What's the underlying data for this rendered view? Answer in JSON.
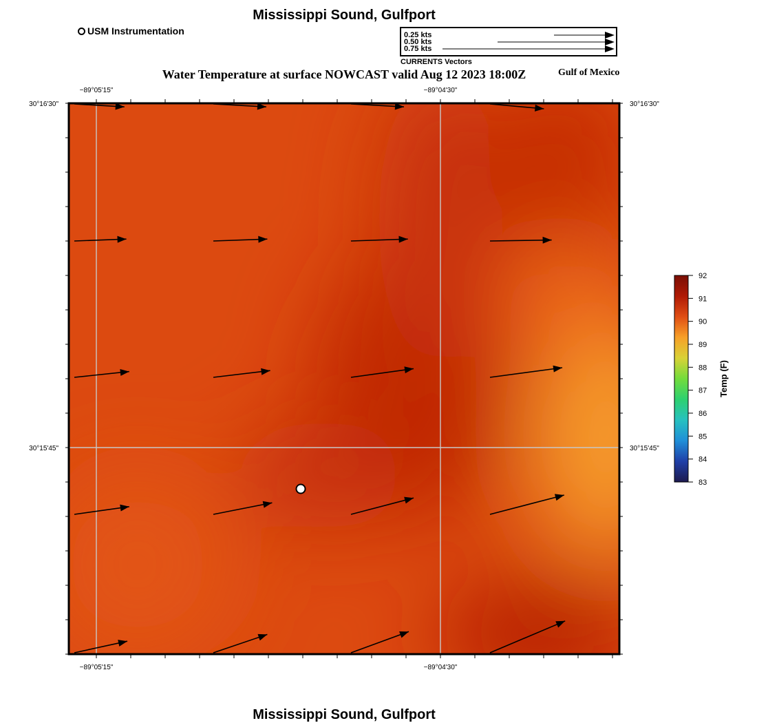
{
  "header": {
    "title": "Mississippi Sound, Gulfport",
    "subtitle": "Water Temperature at surface NOWCAST valid Aug 12 2023 18:00Z",
    "region": "Gulf of Mexico"
  },
  "footer": {
    "title": "Mississippi Sound, Gulfport"
  },
  "station_legend": {
    "label": "USM Instrumentation"
  },
  "vector_legend": {
    "caption": "CURRENTS Vectors",
    "items": [
      {
        "label": "0.25 kts",
        "speed": 0.25
      },
      {
        "label": "0.50 kts",
        "speed": 0.5
      },
      {
        "label": "0.75 kts",
        "speed": 0.75
      }
    ]
  },
  "map": {
    "top_labels": [
      "−89°05'15\"",
      "−89°04'30\""
    ],
    "bottom_labels": [
      "−89°05'15\"",
      "−89°04'30\""
    ],
    "left_labels": [
      "30°16'30\"",
      "30°15'45\""
    ],
    "right_labels": [
      "30°16'30\"",
      "30°15'45\""
    ],
    "station": {
      "name": "USM Instrumentation"
    },
    "currents": [
      [
        {
          "u": 0.52,
          "v": -0.03
        },
        {
          "u": 0.55,
          "v": -0.03
        },
        {
          "u": 0.55,
          "v": -0.03
        },
        {
          "u": 0.56,
          "v": -0.05
        }
      ],
      [
        {
          "u": 0.54,
          "v": 0.02
        },
        {
          "u": 0.56,
          "v": 0.02
        },
        {
          "u": 0.59,
          "v": 0.02
        },
        {
          "u": 0.64,
          "v": 0.01
        }
      ],
      [
        {
          "u": 0.57,
          "v": 0.06
        },
        {
          "u": 0.59,
          "v": 0.07
        },
        {
          "u": 0.65,
          "v": 0.09
        },
        {
          "u": 0.75,
          "v": 0.1
        }
      ],
      [
        {
          "u": 0.57,
          "v": 0.08
        },
        {
          "u": 0.61,
          "v": 0.12
        },
        {
          "u": 0.65,
          "v": 0.17
        },
        {
          "u": 0.77,
          "v": 0.2
        }
      ],
      [
        {
          "u": 0.55,
          "v": 0.12
        },
        {
          "u": 0.56,
          "v": 0.19
        },
        {
          "u": 0.6,
          "v": 0.22
        },
        {
          "u": 0.78,
          "v": 0.33
        }
      ]
    ]
  },
  "colorbar": {
    "title": "Temp (F)",
    "min": 83,
    "max": 92,
    "ticks": [
      "92",
      "91",
      "90",
      "89",
      "88",
      "87",
      "86",
      "85",
      "84",
      "83"
    ],
    "colors": [
      "#1e1b4f",
      "#1f3fa8",
      "#1f8fd8",
      "#27c1c0",
      "#2dd170",
      "#73dc3c",
      "#d9d236",
      "#f7a028",
      "#e04e14",
      "#b01a05",
      "#7a0f05"
    ]
  },
  "colors": {
    "water_base": "#d84810",
    "water_warm_core": "#bf2604",
    "water_cool_patch": "#f3982c"
  }
}
